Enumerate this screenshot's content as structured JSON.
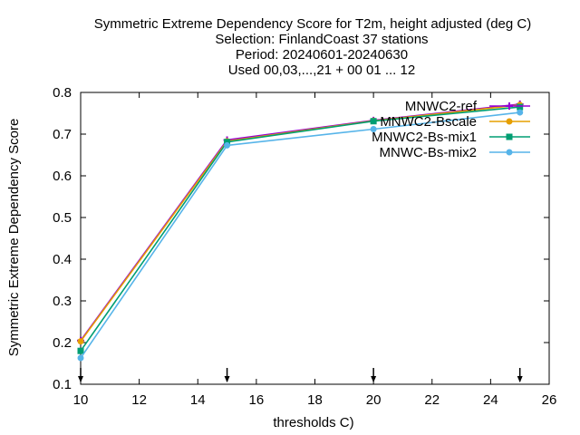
{
  "chart_data": {
    "type": "line",
    "title_lines": [
      "Symmetric Extreme Dependency Score  for T2m, height adjusted (deg C)",
      "Selection: FinlandCoast     37 stations",
      "Period: 20240601-20240630",
      "Used 00,03,...,21 + 00 01 ... 12"
    ],
    "xlabel": "thresholds C)",
    "ylabel": "Symmetric Extreme Dependency Score",
    "xlim": [
      10,
      26
    ],
    "ylim": [
      0.1,
      0.8
    ],
    "xticks": [
      10,
      12,
      14,
      16,
      18,
      20,
      22,
      24,
      26
    ],
    "yticks": [
      0.1,
      0.2,
      0.3,
      0.4,
      0.5,
      0.6,
      0.7,
      0.8
    ],
    "x": [
      10,
      15,
      20,
      25
    ],
    "threshold_markers": [
      10,
      15,
      20,
      25
    ],
    "legend_position": "top-right",
    "grid": false,
    "series": [
      {
        "name": "MNWC2-ref",
        "color": "#9400d3",
        "marker": "plus",
        "values": [
          0.205,
          0.686,
          0.733,
          0.772
        ]
      },
      {
        "name": "MNWC2-Bscale",
        "color": "#e69f00",
        "marker": "circle",
        "values": [
          0.203,
          0.683,
          0.732,
          0.77
        ]
      },
      {
        "name": "MNWC2-Bs-mix1",
        "color": "#009e73",
        "marker": "square",
        "values": [
          0.18,
          0.681,
          0.731,
          0.765
        ]
      },
      {
        "name": "MNWC-Bs-mix2",
        "color": "#56b4e9",
        "marker": "circle",
        "values": [
          0.163,
          0.673,
          0.712,
          0.752
        ]
      }
    ]
  }
}
